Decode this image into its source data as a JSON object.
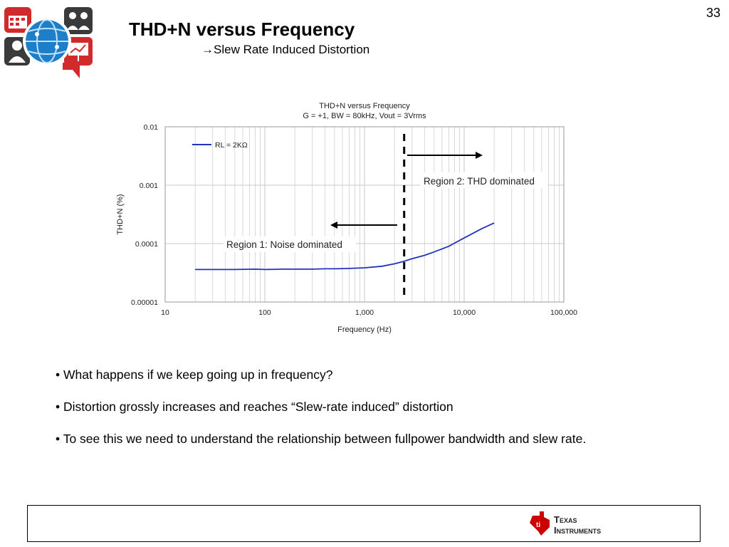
{
  "slide": {
    "page_number": "33",
    "title": "THD+N versus Frequency",
    "subtitle_arrow": "→",
    "subtitle": "Slew Rate Induced Distortion"
  },
  "bullets": [
    "What happens if we keep going up in frequency?",
    "Distortion grossly increases and reaches “Slew-rate induced”  distortion",
    "To see this we need to understand the relationship between fullpower bandwidth and slew rate."
  ],
  "logos": {
    "ti_line1": "Texas",
    "ti_line2": "Instruments",
    "cluster_icons": [
      "calendar-icon",
      "people-icon",
      "globe-icon",
      "presentation-icon",
      "speech-bubble-icon"
    ]
  },
  "colors": {
    "series": "#2233bb",
    "grid": "#c8c8c8",
    "ti_red": "#cc0000",
    "logo_red": "#d02a2a",
    "logo_blue": "#1e7fc8",
    "logo_dark": "#3a3a3a"
  },
  "chart_data": {
    "type": "line",
    "title": "THD+N versus Frequency",
    "subtitle": "G = +1, BW = 80kHz, Vout = 3Vrms",
    "xlabel": "Frequency (Hz)",
    "ylabel": "THD+N (%)",
    "x_scale": "log",
    "y_scale": "log",
    "xlim": [
      10,
      100000
    ],
    "ylim": [
      1e-05,
      0.01
    ],
    "x_ticks": [
      10,
      100,
      1000,
      10000,
      100000
    ],
    "x_tick_labels": [
      "10",
      "100",
      "1,000",
      "10,000",
      "100,000"
    ],
    "y_ticks": [
      1e-05,
      0.0001,
      0.001,
      0.01
    ],
    "y_tick_labels": [
      "0.00001",
      "0.0001",
      "0.001",
      "0.01"
    ],
    "grid": true,
    "legend_position": "top-left",
    "series": [
      {
        "name": "RL =  2KΩ",
        "x": [
          20,
          30,
          50,
          80,
          100,
          150,
          200,
          300,
          400,
          500,
          700,
          1000,
          1500,
          2000,
          2500,
          3000,
          4000,
          5000,
          7000,
          10000,
          15000,
          20000
        ],
        "y": [
          3.6e-05,
          3.6e-05,
          3.6e-05,
          3.65e-05,
          3.6e-05,
          3.65e-05,
          3.65e-05,
          3.65e-05,
          3.7e-05,
          3.7e-05,
          3.75e-05,
          3.85e-05,
          4.1e-05,
          4.5e-05,
          5e-05,
          5.5e-05,
          6.3e-05,
          7.2e-05,
          9e-05,
          0.000125,
          0.00018,
          0.000225
        ]
      }
    ],
    "divider_x": 2500,
    "annotations": [
      {
        "text": "Region 1: Noise dominated",
        "arrow": "left"
      },
      {
        "text": "Region 2: THD dominated",
        "arrow": "right"
      }
    ]
  }
}
